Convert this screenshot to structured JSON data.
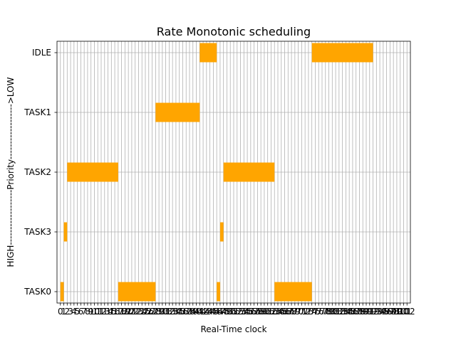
{
  "chart_data": {
    "type": "gantt",
    "title": "Rate Monotonic scheduling",
    "xlabel": "Real-Time clock",
    "ylabel": "HIGH------------------Priority------------------>LOW",
    "xlim": [
      -1,
      103
    ],
    "categories": [
      "TASK0",
      "TASK3",
      "TASK2",
      "TASK1",
      "IDLE"
    ],
    "x_ticks": [
      0,
      1,
      2,
      3,
      4,
      5,
      6,
      7,
      8,
      9,
      10,
      11,
      12,
      13,
      14,
      15,
      16,
      17,
      18,
      19,
      20,
      21,
      22,
      23,
      24,
      25,
      26,
      27,
      28,
      29,
      30,
      31,
      32,
      33,
      34,
      35,
      36,
      37,
      38,
      39,
      40,
      41,
      42,
      43,
      44,
      45,
      46,
      47,
      48,
      49,
      50,
      51,
      52,
      53,
      54,
      55,
      56,
      57,
      58,
      59,
      60,
      61,
      62,
      63,
      64,
      65,
      66,
      67,
      68,
      69,
      70,
      71,
      72,
      73,
      74,
      75,
      76,
      77,
      78,
      79,
      80,
      81,
      82,
      83,
      84,
      85,
      86,
      87,
      88,
      89,
      90,
      91,
      92,
      93,
      94,
      95,
      96,
      97,
      98,
      99,
      100,
      101,
      102
    ],
    "grid": true,
    "bar_color": "#FFA500",
    "segments": [
      {
        "task": "TASK0",
        "start": 0,
        "end": 1
      },
      {
        "task": "TASK3",
        "start": 1,
        "end": 2
      },
      {
        "task": "TASK2",
        "start": 2,
        "end": 17
      },
      {
        "task": "TASK0",
        "start": 17,
        "end": 28
      },
      {
        "task": "TASK1",
        "start": 28,
        "end": 41
      },
      {
        "task": "IDLE",
        "start": 41,
        "end": 46
      },
      {
        "task": "TASK0",
        "start": 46,
        "end": 47
      },
      {
        "task": "TASK3",
        "start": 47,
        "end": 48
      },
      {
        "task": "TASK2",
        "start": 48,
        "end": 63
      },
      {
        "task": "TASK0",
        "start": 63,
        "end": 74
      },
      {
        "task": "IDLE",
        "start": 74,
        "end": 92
      }
    ]
  }
}
